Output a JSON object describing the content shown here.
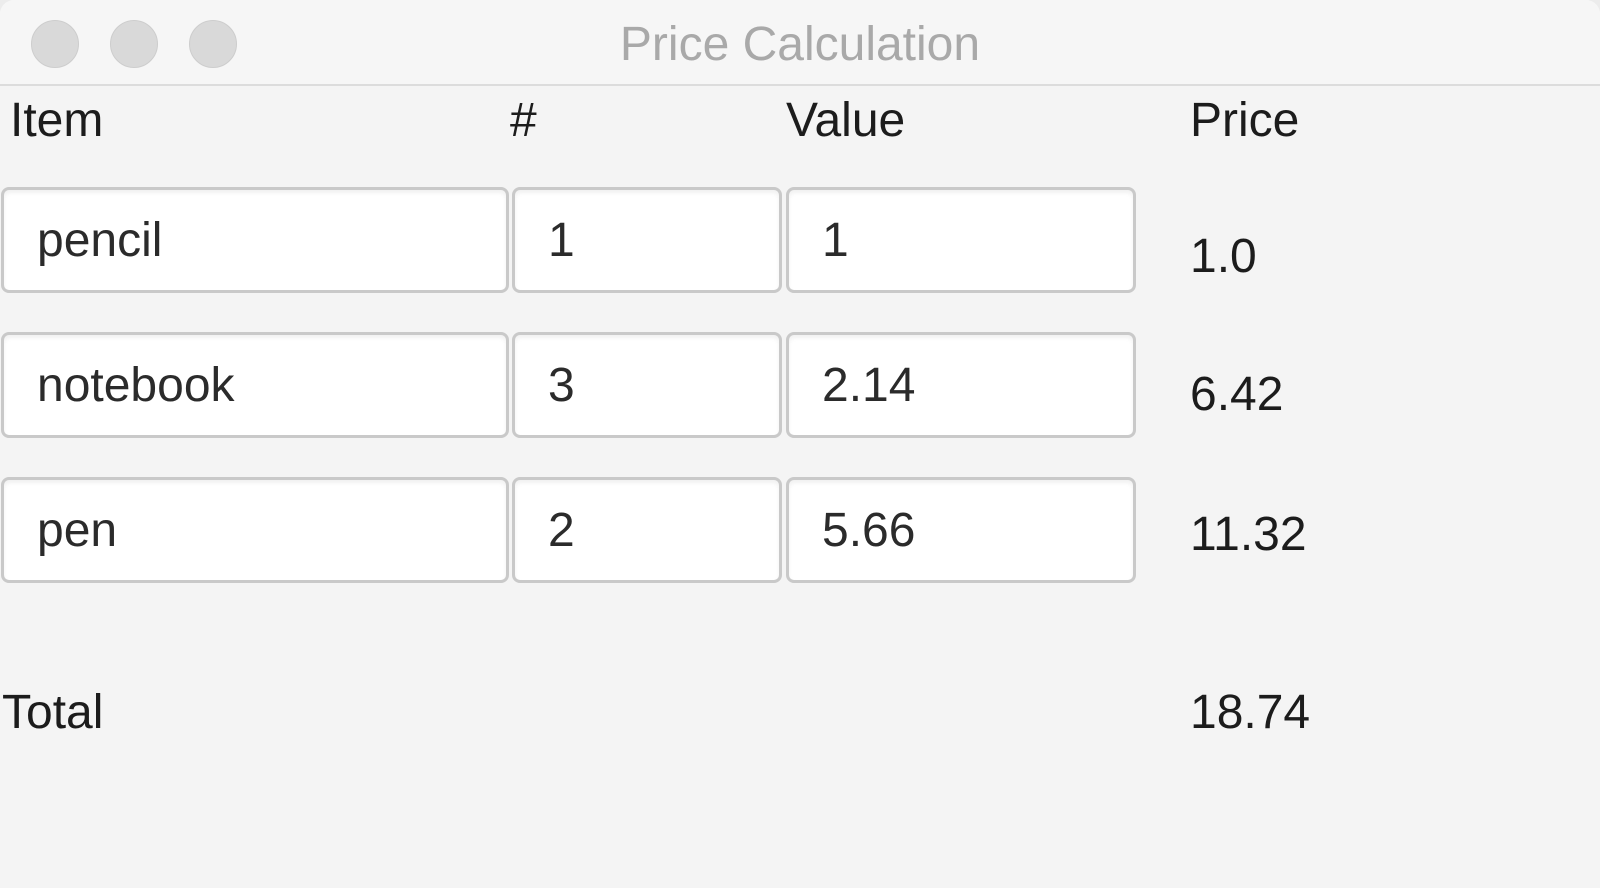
{
  "window": {
    "title": "Price Calculation"
  },
  "headers": {
    "item": "Item",
    "qty": "#",
    "value": "Value",
    "price": "Price"
  },
  "rows": [
    {
      "item": "pencil",
      "qty": "1",
      "value": "1",
      "price": "1.0"
    },
    {
      "item": "notebook",
      "qty": "3",
      "value": "2.14",
      "price": "6.42"
    },
    {
      "item": "pen",
      "qty": "2",
      "value": "5.66",
      "price": "11.32"
    }
  ],
  "total": {
    "label": "Total",
    "value": "18.74"
  },
  "colors": {
    "window_bg": "#f4f4f4",
    "title_text": "#a9a9a9",
    "traffic_light_inactive": "#d9d9d9",
    "field_border": "#c9c9c9"
  }
}
